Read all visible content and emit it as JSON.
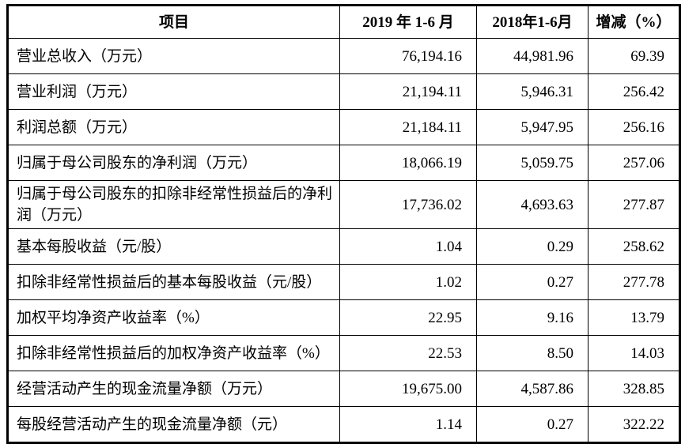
{
  "table": {
    "title": "financial-summary",
    "columns": [
      {
        "key": "item",
        "label": "项目"
      },
      {
        "key": "y2019",
        "label": "2019 年 1-6 月"
      },
      {
        "key": "y2018",
        "label": "2018年1-6月"
      },
      {
        "key": "change",
        "label": "增减（%）"
      }
    ],
    "rows": [
      {
        "item": "营业总收入（万元）",
        "y2019": "76,194.16",
        "y2018": "44,981.96",
        "change": "69.39"
      },
      {
        "item": "营业利润（万元）",
        "y2019": "21,194.11",
        "y2018": "5,946.31",
        "change": "256.42"
      },
      {
        "item": "利润总额（万元）",
        "y2019": "21,184.11",
        "y2018": "5,947.95",
        "change": "256.16"
      },
      {
        "item": "归属于母公司股东的净利润（万元）",
        "y2019": "18,066.19",
        "y2018": "5,059.75",
        "change": "257.06"
      },
      {
        "item": "归属于母公司股东的扣除非经常性损益后的净利润（万元）",
        "y2019": "17,736.02",
        "y2018": "4,693.63",
        "change": "277.87"
      },
      {
        "item": "基本每股收益（元/股）",
        "y2019": "1.04",
        "y2018": "0.29",
        "change": "258.62"
      },
      {
        "item": "扣除非经常性损益后的基本每股收益（元/股）",
        "y2019": "1.02",
        "y2018": "0.27",
        "change": "277.78"
      },
      {
        "item": "加权平均净资产收益率（%）",
        "y2019": "22.95",
        "y2018": "9.16",
        "change": "13.79"
      },
      {
        "item": "扣除非经常性损益后的加权净资产收益率（%）",
        "y2019": "22.53",
        "y2018": "8.50",
        "change": "14.03"
      },
      {
        "item": "经营活动产生的现金流量净额（万元）",
        "y2019": "19,675.00",
        "y2018": "4,587.86",
        "change": "328.85"
      },
      {
        "item": "每股经营活动产生的现金流量净额（元）",
        "y2019": "1.14",
        "y2018": "0.27",
        "change": "322.22"
      }
    ]
  },
  "colors": {
    "border": "#000000",
    "text": "#000000",
    "background": "#ffffff"
  }
}
